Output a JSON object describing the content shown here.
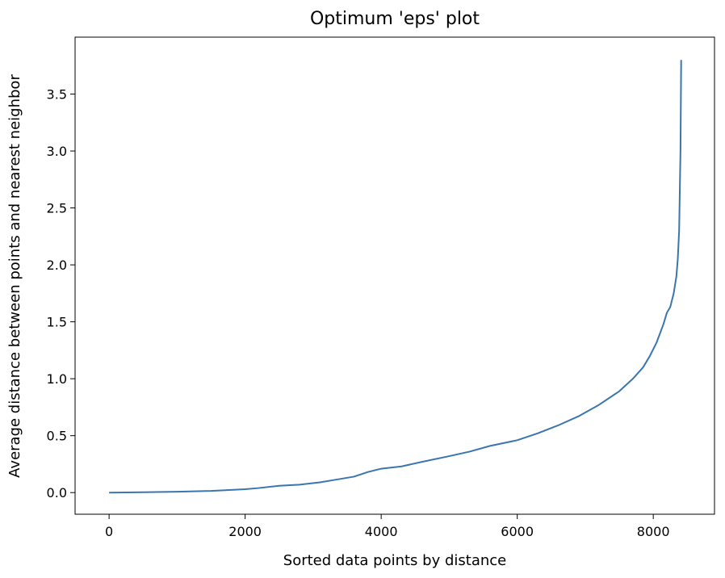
{
  "chart_data": {
    "type": "line",
    "title": "Optimum 'eps' plot",
    "xlabel": "Sorted data points by distance",
    "ylabel": "Average distance between points and nearest neighbor",
    "xlim": [
      -500,
      8900
    ],
    "ylim": [
      -0.19,
      4.0
    ],
    "x_ticks": [
      0,
      2000,
      4000,
      6000,
      8000
    ],
    "x_tick_labels": [
      "0",
      "2000",
      "4000",
      "6000",
      "8000"
    ],
    "y_ticks": [
      0.0,
      0.5,
      1.0,
      1.5,
      2.0,
      2.5,
      3.0,
      3.5
    ],
    "y_tick_labels": [
      "0.0",
      "0.5",
      "1.0",
      "1.5",
      "2.0",
      "2.5",
      "3.0",
      "3.5"
    ],
    "grid": false,
    "line_color": "#3b75af",
    "series": [
      {
        "x": [
          0,
          500,
          1000,
          1500,
          2000,
          2200,
          2500,
          2800,
          3100,
          3300,
          3600,
          3800,
          4000,
          4300,
          4600,
          5000,
          5300,
          5600,
          6000,
          6300,
          6600,
          6900,
          7200,
          7500,
          7700,
          7850,
          7950,
          8050,
          8150,
          8200,
          8250,
          8300,
          8340,
          8360,
          8380,
          8390,
          8400,
          8405,
          8410
        ],
        "y": [
          0.0,
          0.003,
          0.008,
          0.015,
          0.03,
          0.04,
          0.06,
          0.07,
          0.09,
          0.11,
          0.14,
          0.18,
          0.21,
          0.23,
          0.27,
          0.32,
          0.36,
          0.41,
          0.46,
          0.52,
          0.59,
          0.67,
          0.77,
          0.89,
          1.0,
          1.1,
          1.2,
          1.32,
          1.48,
          1.58,
          1.63,
          1.75,
          1.9,
          2.05,
          2.3,
          2.65,
          3.0,
          3.4,
          3.8
        ]
      }
    ]
  }
}
